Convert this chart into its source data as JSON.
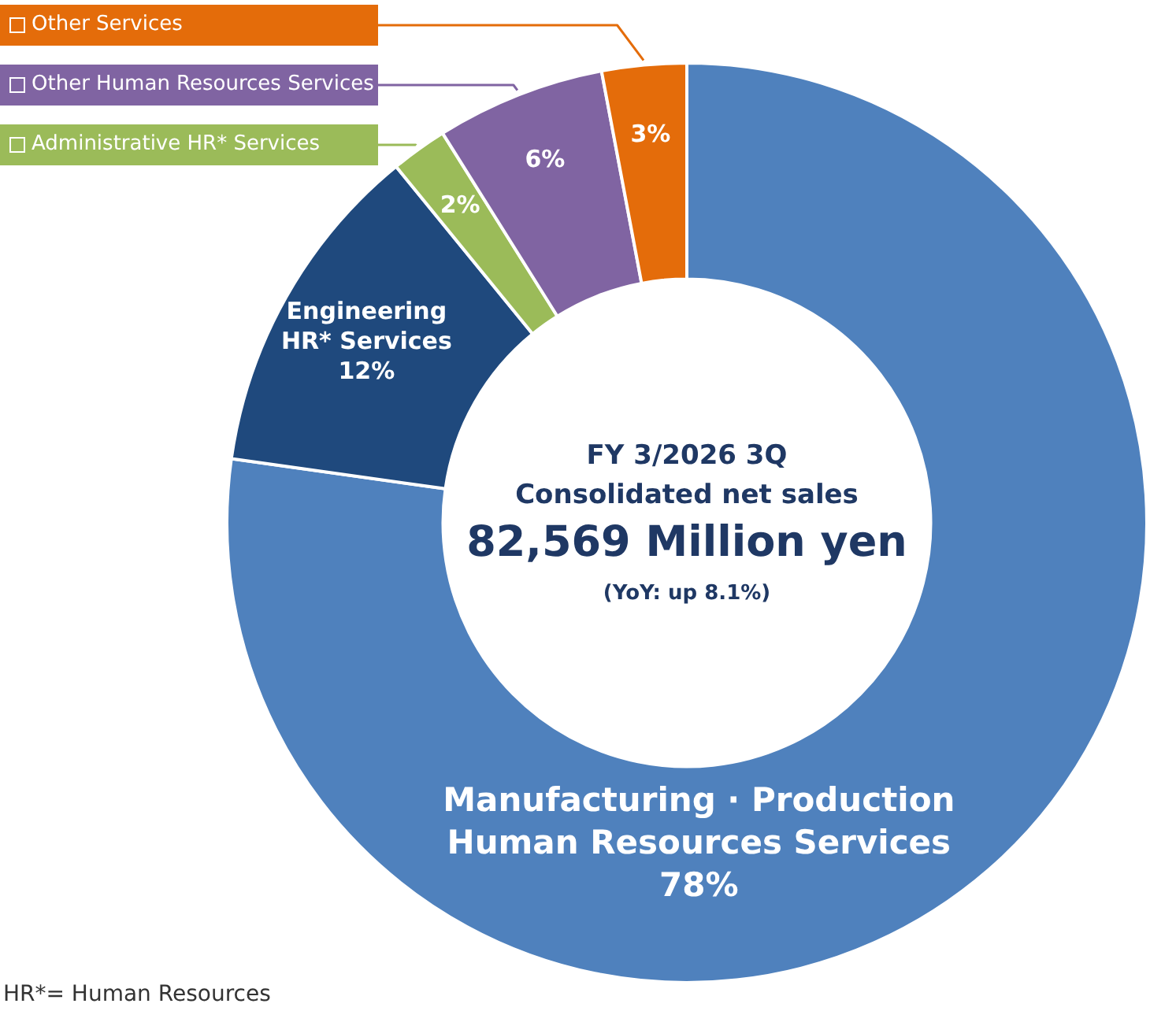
{
  "chart_data": {
    "type": "donut",
    "title": "FY 3/2026 3Q",
    "subtitle": "Consolidated net sales",
    "categories": [
      "Manufacturing · Production\nHuman Resources Services",
      "Engineering\nHR* Services",
      "Administrative HR* Services",
      "Other Human Resources Services",
      "Other Services"
    ],
    "values": [
      78,
      12,
      2,
      6,
      3
    ],
    "value_labels": [
      "78%",
      "12%",
      "2%",
      "6%",
      "3%"
    ],
    "colors": [
      "#4f81bd",
      "#1f497d",
      "#9bbb59",
      "#8064a2",
      "#e46c0a"
    ],
    "annotations": [
      "82,569 Million yen",
      "(YoY: up 8.1%)",
      "HR*= Human Resources"
    ],
    "legend": "top left"
  }
}
